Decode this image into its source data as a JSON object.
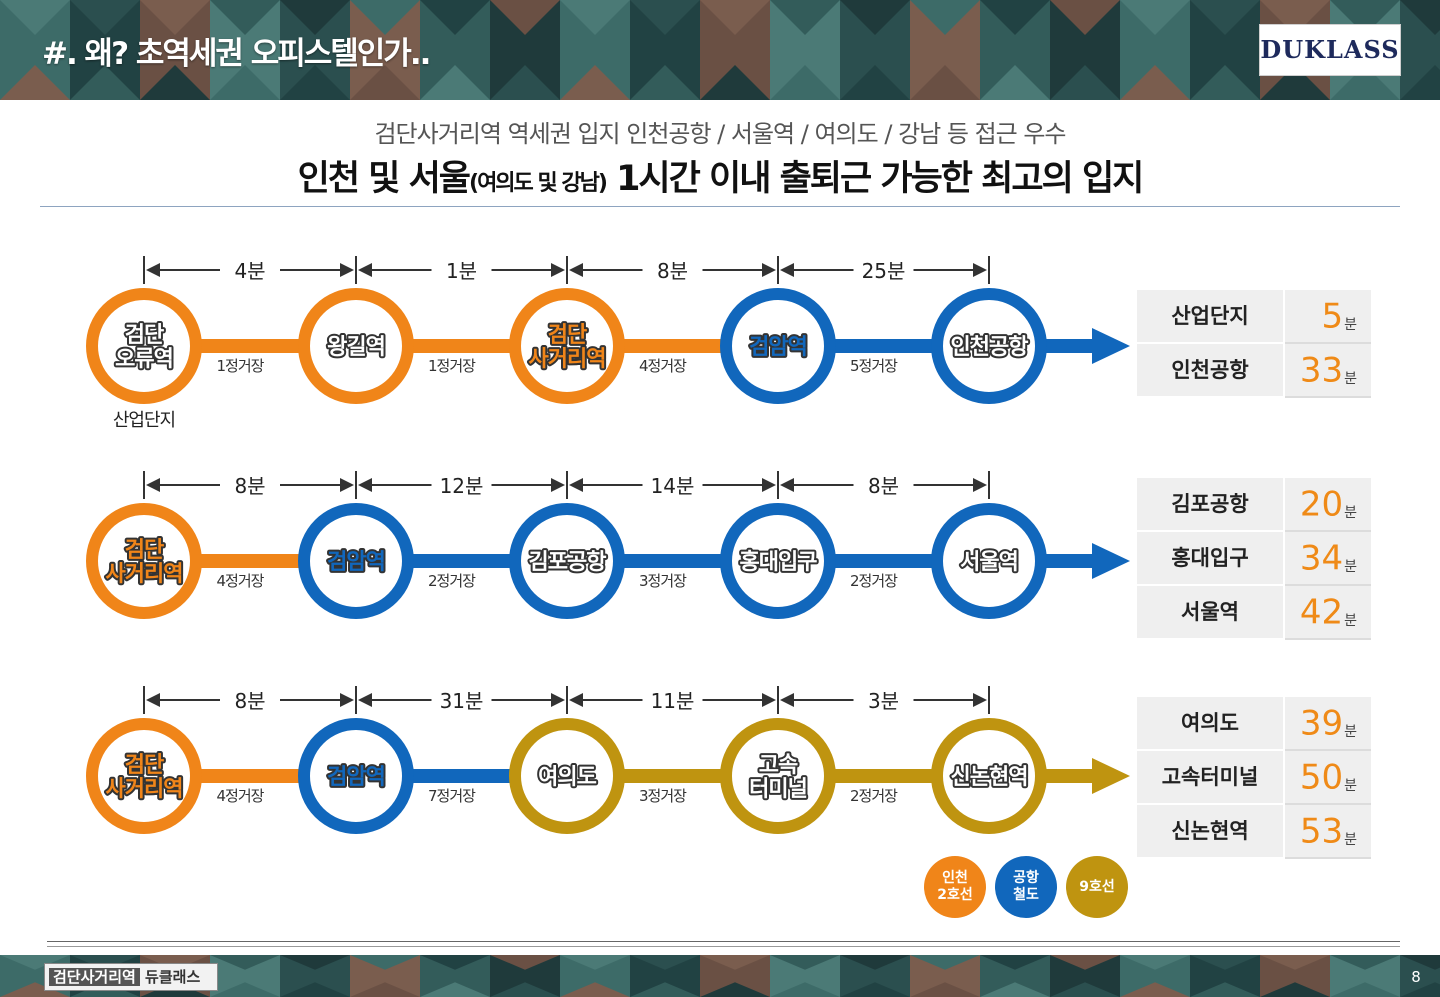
{
  "header": {
    "title": "#. 왜? 초역세권 오피스텔인가..",
    "logo": "DUKLASS"
  },
  "subtitle": "검단사거리역 역세권 입지 인천공항 / 서울역 / 여의도 / 강남 등 접근 우수",
  "headline": {
    "part1": "인천 및 서울",
    "part2": "(여의도 및 강남)",
    "part3": " 1시간 이내 출퇴근 가능한 최고의 입지"
  },
  "colors": {
    "orange": "#F08519",
    "blue": "#1167BC",
    "gold": "#BF9410"
  },
  "routes": [
    {
      "arrow_color": "blue",
      "stations": [
        {
          "name": "검단\n오류역",
          "line": "orange",
          "text_color": "white",
          "sublabel": "산업단지"
        },
        {
          "name": "왕길역",
          "line": "orange",
          "text_color": "white"
        },
        {
          "name": "검단\n사거리역",
          "line": "orange",
          "text_color": "orange"
        },
        {
          "name": "검암역",
          "line": "blue",
          "text_color": "blue"
        },
        {
          "name": "인천공항",
          "line": "blue",
          "text_color": "white"
        }
      ],
      "segments": [
        {
          "time": "4분",
          "stops": "1정거장",
          "color": "orange"
        },
        {
          "time": "1분",
          "stops": "1정거장",
          "color": "orange"
        },
        {
          "time": "8분",
          "stops": "4정거장",
          "color": "orange"
        },
        {
          "time": "25분",
          "stops": "5정거장",
          "color": "blue"
        }
      ],
      "totals": [
        {
          "place": "산업단지",
          "minutes": "5",
          "unit": "분"
        },
        {
          "place": "인천공항",
          "minutes": "33",
          "unit": "분"
        }
      ]
    },
    {
      "arrow_color": "blue",
      "stations": [
        {
          "name": "검단\n사거리역",
          "line": "orange",
          "text_color": "orange"
        },
        {
          "name": "검암역",
          "line": "blue",
          "text_color": "blue"
        },
        {
          "name": "김포공항",
          "line": "blue",
          "text_color": "white"
        },
        {
          "name": "홍대입구",
          "line": "blue",
          "text_color": "white"
        },
        {
          "name": "서울역",
          "line": "blue",
          "text_color": "white"
        }
      ],
      "segments": [
        {
          "time": "8분",
          "stops": "4정거장",
          "color": "orange"
        },
        {
          "time": "12분",
          "stops": "2정거장",
          "color": "blue"
        },
        {
          "time": "14분",
          "stops": "3정거장",
          "color": "blue"
        },
        {
          "time": "8분",
          "stops": "2정거장",
          "color": "blue"
        }
      ],
      "totals": [
        {
          "place": "김포공항",
          "minutes": "20",
          "unit": "분"
        },
        {
          "place": "홍대입구",
          "minutes": "34",
          "unit": "분"
        },
        {
          "place": "서울역",
          "minutes": "42",
          "unit": "분"
        }
      ]
    },
    {
      "arrow_color": "gold",
      "stations": [
        {
          "name": "검단\n사거리역",
          "line": "orange",
          "text_color": "orange"
        },
        {
          "name": "검암역",
          "line": "blue",
          "text_color": "blue"
        },
        {
          "name": "여의도",
          "line": "gold",
          "text_color": "white"
        },
        {
          "name": "고속\n터미널",
          "line": "gold",
          "text_color": "white"
        },
        {
          "name": "신논현역",
          "line": "gold",
          "text_color": "white"
        }
      ],
      "segments": [
        {
          "time": "8분",
          "stops": "4정거장",
          "color": "orange"
        },
        {
          "time": "31분",
          "stops": "7정거장",
          "color": "blue"
        },
        {
          "time": "11분",
          "stops": "3정거장",
          "color": "gold"
        },
        {
          "time": "3분",
          "stops": "2정거장",
          "color": "gold"
        }
      ],
      "totals": [
        {
          "place": "여의도",
          "minutes": "39",
          "unit": "분"
        },
        {
          "place": "고속터미널",
          "minutes": "50",
          "unit": "분"
        },
        {
          "place": "신논현역",
          "minutes": "53",
          "unit": "분"
        }
      ]
    }
  ],
  "legend": [
    {
      "label": "인천\n2호선",
      "color": "orange"
    },
    {
      "label": "공항\n철도",
      "color": "blue"
    },
    {
      "label": "9호선",
      "color": "gold"
    }
  ],
  "footer": {
    "brand_station": "검단사거리역",
    "brand_name": "듀클래스",
    "page": "8"
  }
}
